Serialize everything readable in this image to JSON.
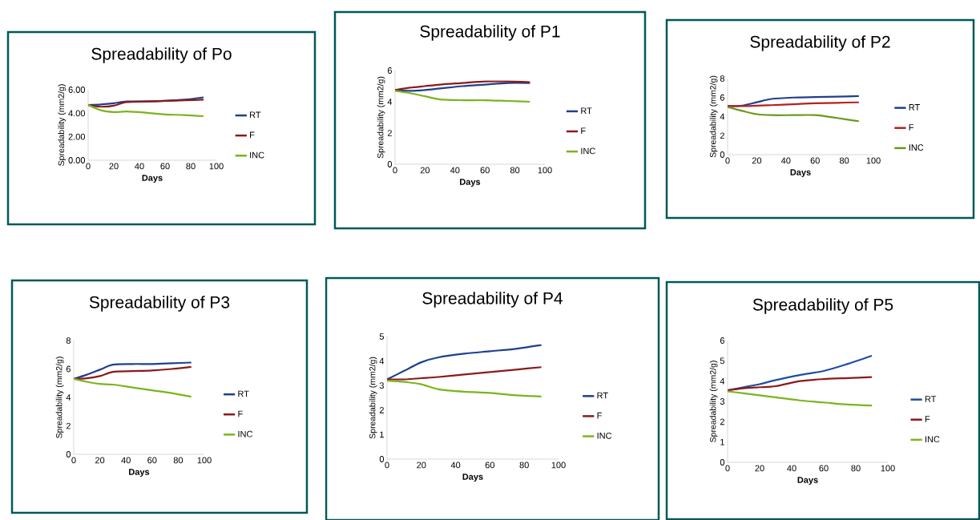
{
  "chart_data": [
    {
      "type": "line",
      "title": "Spreadability of Po",
      "xlabel": "Days",
      "ylabel": "Spreadability (mm2/g)",
      "x": [
        0,
        10,
        20,
        30,
        45,
        60,
        75,
        90
      ],
      "xlim": [
        0,
        100
      ],
      "xticks": [
        0,
        20,
        40,
        60,
        80,
        100
      ],
      "ylim": [
        0,
        6
      ],
      "yticks": [
        {
          "value": 0,
          "label": "0.00"
        },
        {
          "value": 2,
          "label": "2.00"
        },
        {
          "value": 4,
          "label": "4.00"
        },
        {
          "value": 6,
          "label": "6.00"
        }
      ],
      "legend": "right",
      "series": [
        {
          "name": "RT",
          "color": "#1f3f8f",
          "values": [
            4.7,
            4.75,
            4.85,
            5.0,
            5.0,
            5.05,
            5.15,
            5.35
          ]
        },
        {
          "name": "F",
          "color": "#8b1a1a",
          "values": [
            4.7,
            4.55,
            4.65,
            4.95,
            5.0,
            5.05,
            5.1,
            5.15
          ]
        },
        {
          "name": "INC",
          "color": "#7ab51d",
          "values": [
            4.7,
            4.25,
            4.1,
            4.15,
            4.05,
            3.9,
            3.85,
            3.75
          ]
        }
      ]
    },
    {
      "type": "line",
      "title": "Spreadability of P1",
      "xlabel": "Days",
      "ylabel": "Spreadability (mm2/g)",
      "x": [
        0,
        10,
        20,
        30,
        45,
        60,
        75,
        90
      ],
      "xlim": [
        0,
        100
      ],
      "xticks": [
        0,
        20,
        40,
        60,
        80,
        100
      ],
      "ylim": [
        0,
        6
      ],
      "yticks": [
        0,
        2,
        4,
        6
      ],
      "legend": "right",
      "series": [
        {
          "name": "RT",
          "color": "#1f3f8f",
          "values": [
            4.75,
            4.7,
            4.75,
            4.85,
            5.0,
            5.1,
            5.2,
            5.2
          ]
        },
        {
          "name": "F",
          "color": "#8b1a1a",
          "values": [
            4.75,
            4.9,
            5.0,
            5.1,
            5.2,
            5.3,
            5.3,
            5.25
          ]
        },
        {
          "name": "INC",
          "color": "#7ab51d",
          "values": [
            4.7,
            4.55,
            4.35,
            4.15,
            4.1,
            4.1,
            4.05,
            4.0
          ]
        }
      ]
    },
    {
      "type": "line",
      "title": "Spreadability of P2",
      "xlabel": "Days",
      "ylabel": "Spreadability (mm2/g)",
      "x": [
        0,
        10,
        20,
        30,
        45,
        60,
        75,
        90
      ],
      "xlim": [
        0,
        100
      ],
      "xticks": [
        0,
        20,
        40,
        60,
        80,
        100
      ],
      "ylim": [
        0,
        8
      ],
      "yticks": [
        0,
        2,
        4,
        6,
        8
      ],
      "legend": "right",
      "series": [
        {
          "name": "RT",
          "color": "#1f3f8f",
          "values": [
            5.1,
            5.15,
            5.5,
            5.85,
            6.0,
            6.05,
            6.1,
            6.15
          ]
        },
        {
          "name": "F",
          "color": "#b22222",
          "values": [
            5.1,
            5.1,
            5.15,
            5.2,
            5.3,
            5.4,
            5.45,
            5.5
          ]
        },
        {
          "name": "INC",
          "color": "#6a9a1a",
          "values": [
            5.0,
            4.6,
            4.25,
            4.15,
            4.15,
            4.15,
            3.85,
            3.5
          ]
        }
      ]
    },
    {
      "type": "line",
      "title": "Spreadability of P3",
      "xlabel": "Days",
      "ylabel": "Spreadability (mm2/g)",
      "x": [
        0,
        10,
        20,
        30,
        45,
        60,
        75,
        90
      ],
      "xlim": [
        0,
        100
      ],
      "xticks": [
        0,
        20,
        40,
        60,
        80,
        100
      ],
      "ylim": [
        0,
        8
      ],
      "yticks": [
        0,
        2,
        4,
        6,
        8
      ],
      "legend": "right",
      "series": [
        {
          "name": "RT",
          "color": "#1f3f8f",
          "values": [
            5.3,
            5.6,
            5.95,
            6.3,
            6.35,
            6.35,
            6.4,
            6.45
          ]
        },
        {
          "name": "F",
          "color": "#8b1a1a",
          "values": [
            5.3,
            5.35,
            5.5,
            5.8,
            5.85,
            5.9,
            6.0,
            6.15
          ]
        },
        {
          "name": "INC",
          "color": "#7ab51d",
          "values": [
            5.3,
            5.1,
            4.95,
            4.9,
            4.7,
            4.5,
            4.3,
            4.05
          ]
        }
      ]
    },
    {
      "type": "line",
      "title": "Spreadability of P4",
      "xlabel": "Days",
      "ylabel": "Spreadability (mm2/g)",
      "x": [
        0,
        10,
        20,
        30,
        45,
        60,
        75,
        90
      ],
      "xlim": [
        0,
        100
      ],
      "xticks": [
        0,
        20,
        40,
        60,
        80,
        100
      ],
      "ylim": [
        0,
        5
      ],
      "yticks": [
        0,
        1,
        2,
        3,
        4,
        5
      ],
      "legend": "right",
      "series": [
        {
          "name": "RT",
          "color": "#1f3f8f",
          "values": [
            3.25,
            3.6,
            3.95,
            4.15,
            4.3,
            4.4,
            4.5,
            4.65
          ]
        },
        {
          "name": "F",
          "color": "#8b1a1a",
          "values": [
            3.25,
            3.25,
            3.3,
            3.35,
            3.45,
            3.55,
            3.65,
            3.75
          ]
        },
        {
          "name": "INC",
          "color": "#7ab51d",
          "values": [
            3.2,
            3.15,
            3.05,
            2.85,
            2.75,
            2.7,
            2.6,
            2.55
          ]
        }
      ]
    },
    {
      "type": "line",
      "title": "Spreadability of P5",
      "xlabel": "Days",
      "ylabel": "Spreadability (mm2/g)",
      "x": [
        0,
        10,
        20,
        30,
        45,
        60,
        75,
        90
      ],
      "xlim": [
        0,
        100
      ],
      "xticks": [
        0,
        20,
        40,
        60,
        80,
        100
      ],
      "ylim": [
        0,
        6
      ],
      "yticks": [
        0,
        1,
        2,
        3,
        4,
        5,
        6
      ],
      "legend": "right",
      "series": [
        {
          "name": "RT",
          "color": "#1f4f9f",
          "values": [
            3.55,
            3.7,
            3.85,
            4.05,
            4.3,
            4.5,
            4.85,
            5.25
          ]
        },
        {
          "name": "F",
          "color": "#8b1a1a",
          "values": [
            3.55,
            3.65,
            3.7,
            3.75,
            4.0,
            4.1,
            4.15,
            4.2
          ]
        },
        {
          "name": "INC",
          "color": "#7ab51d",
          "values": [
            3.5,
            3.4,
            3.3,
            3.2,
            3.05,
            2.95,
            2.85,
            2.8
          ]
        }
      ]
    }
  ]
}
